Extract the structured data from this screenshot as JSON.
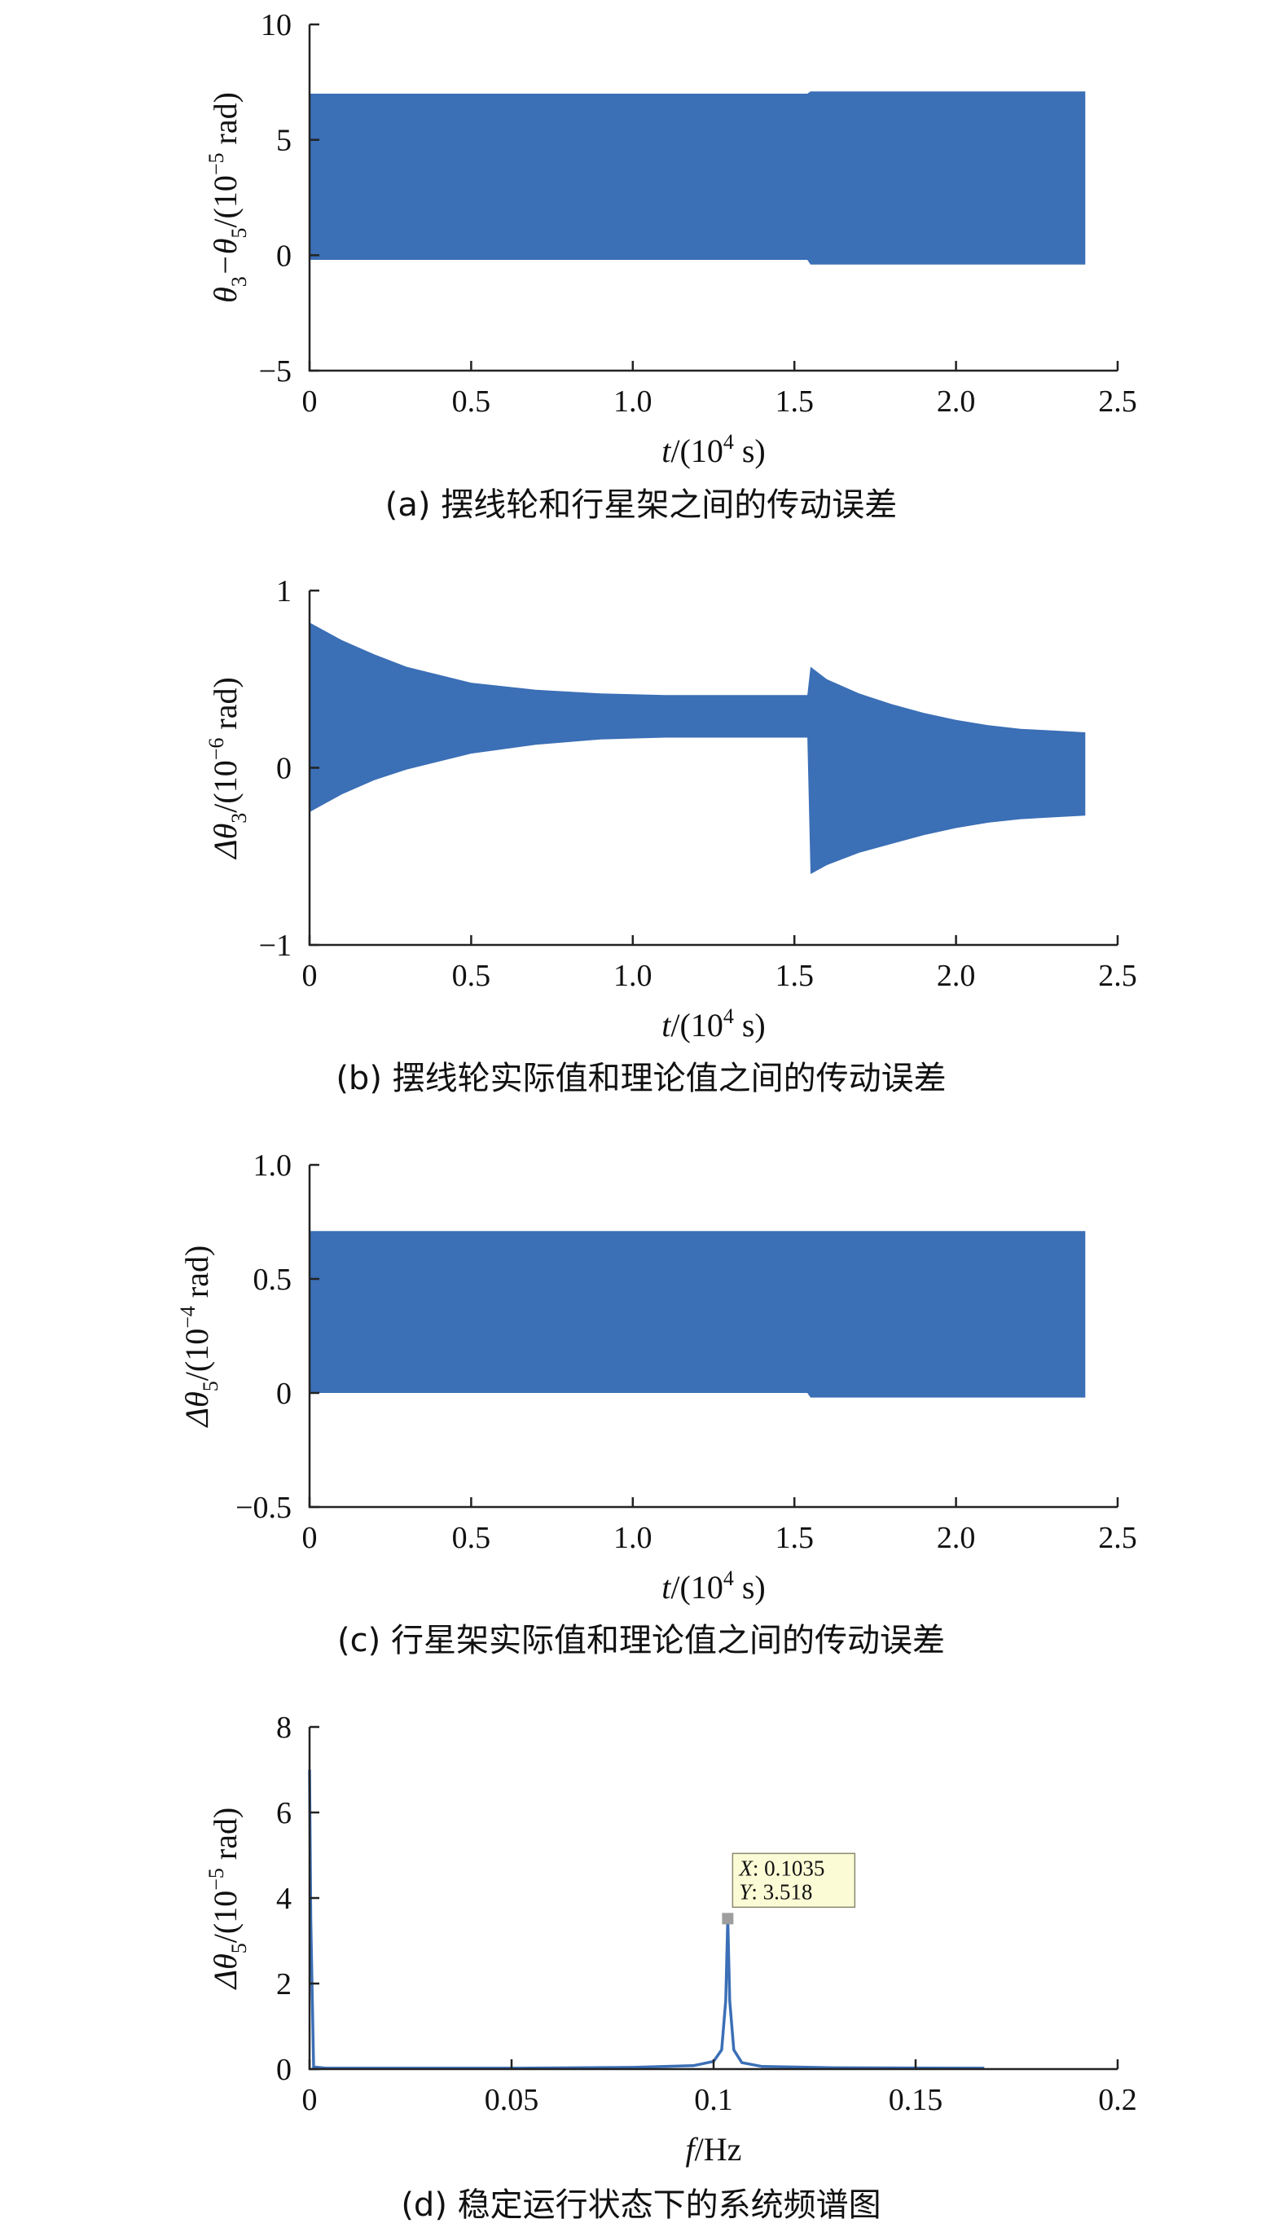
{
  "chart_data": [
    {
      "type": "area",
      "panel": "a",
      "caption": "(a) 摆线轮和行星架之间的传动误差",
      "ylabel": "θ3−θ5/(10−5 rad)",
      "ylabel_parts": {
        "main": "θ",
        "sub1": "3",
        "dash": "−θ",
        "sub2": "5",
        "pre": "/(10",
        "sup": "−5",
        "post": " rad)"
      },
      "xlabel": "t/(10⁴ s)",
      "xlabel_parts": {
        "var": "t",
        "pre": "/(10",
        "sup": "4",
        "post": " s)"
      },
      "xlim": [
        0,
        2.5
      ],
      "ylim": [
        -5,
        10
      ],
      "xticks": [
        "0",
        "0.5",
        "1.0",
        "1.5",
        "2.0",
        "2.5"
      ],
      "xtick_values": [
        0,
        0.5,
        1.0,
        1.5,
        2.0,
        2.5
      ],
      "yticks": [
        "−5",
        "0",
        "5",
        "10"
      ],
      "ytick_values": [
        -5,
        0,
        5,
        10
      ],
      "series": [
        {
          "color": "#3b6fb6",
          "envelope_t": [
            0,
            1.54,
            1.55,
            2.4
          ],
          "upper": [
            7.0,
            7.0,
            7.1,
            7.1
          ],
          "lower": [
            -0.2,
            -0.2,
            -0.4,
            -0.4
          ]
        }
      ]
    },
    {
      "type": "area",
      "panel": "b",
      "caption": "(b) 摆线轮实际值和理论值之间的传动误差",
      "ylabel": "Δθ3/(10−6 rad)",
      "ylabel_parts": {
        "main": "Δθ",
        "sub": "3",
        "pre": "/(10",
        "sup": "−6",
        "post": " rad)"
      },
      "xlabel": "t/(10⁴ s)",
      "xlabel_parts": {
        "var": "t",
        "pre": "/(10",
        "sup": "4",
        "post": " s)"
      },
      "xlim": [
        0,
        2.5
      ],
      "ylim": [
        -1,
        1
      ],
      "xticks": [
        "0",
        "0.5",
        "1.0",
        "1.5",
        "2.0",
        "2.5"
      ],
      "xtick_values": [
        0,
        0.5,
        1.0,
        1.5,
        2.0,
        2.5
      ],
      "yticks": [
        "−1",
        "0",
        "1"
      ],
      "ytick_values": [
        -1,
        0,
        1
      ],
      "series": [
        {
          "color": "#3b6fb6",
          "envelope_t": [
            0,
            0.1,
            0.2,
            0.3,
            0.5,
            0.7,
            0.9,
            1.1,
            1.3,
            1.54,
            1.55,
            1.6,
            1.7,
            1.8,
            1.9,
            2.0,
            2.1,
            2.2,
            2.3,
            2.4
          ],
          "upper": [
            0.82,
            0.72,
            0.64,
            0.57,
            0.48,
            0.44,
            0.42,
            0.41,
            0.41,
            0.41,
            0.57,
            0.5,
            0.42,
            0.36,
            0.31,
            0.27,
            0.24,
            0.22,
            0.21,
            0.2
          ],
          "lower": [
            -0.25,
            -0.15,
            -0.07,
            -0.01,
            0.08,
            0.13,
            0.16,
            0.17,
            0.17,
            0.17,
            -0.6,
            -0.55,
            -0.48,
            -0.43,
            -0.38,
            -0.34,
            -0.31,
            -0.29,
            -0.28,
            -0.27
          ]
        }
      ]
    },
    {
      "type": "area",
      "panel": "c",
      "caption": "(c) 行星架实际值和理论值之间的传动误差",
      "ylabel": "Δθ5/(10−4 rad)",
      "ylabel_parts": {
        "main": "Δθ",
        "sub": "5",
        "pre": "/(10",
        "sup": "−4",
        "post": " rad)"
      },
      "xlabel": "t/(10⁴ s)",
      "xlabel_parts": {
        "var": "t",
        "pre": "/(10",
        "sup": "4",
        "post": " s)"
      },
      "xlim": [
        0,
        2.5
      ],
      "ylim": [
        -0.5,
        1.0
      ],
      "xticks": [
        "0",
        "0.5",
        "1.0",
        "1.5",
        "2.0",
        "2.5"
      ],
      "xtick_values": [
        0,
        0.5,
        1.0,
        1.5,
        2.0,
        2.5
      ],
      "yticks": [
        "−0.5",
        "0",
        "0.5",
        "1.0"
      ],
      "ytick_values": [
        -0.5,
        0,
        0.5,
        1.0
      ],
      "series": [
        {
          "color": "#3b6fb6",
          "envelope_t": [
            0,
            1.54,
            1.55,
            2.4
          ],
          "upper": [
            0.71,
            0.71,
            0.71,
            0.71
          ],
          "lower": [
            0.0,
            0.0,
            -0.02,
            -0.02
          ]
        }
      ]
    },
    {
      "type": "line",
      "panel": "d",
      "caption": "(d) 稳定运行状态下的系统频谱图",
      "ylabel": "Δθ5/(10−5 rad)",
      "ylabel_parts": {
        "main": "Δθ",
        "sub": "5",
        "pre": "/(10",
        "sup": "−5",
        "post": " rad)"
      },
      "xlabel": "f/Hz",
      "xlabel_parts": {
        "var": "f",
        "post": "/Hz"
      },
      "xlim": [
        0,
        0.2
      ],
      "ylim": [
        0,
        8
      ],
      "xticks": [
        "0",
        "0.05",
        "0.1",
        "0.15",
        "0.2"
      ],
      "xtick_values": [
        0,
        0.05,
        0.1,
        0.15,
        0.2
      ],
      "yticks": [
        "0",
        "2",
        "4",
        "6",
        "8"
      ],
      "ytick_values": [
        0,
        2,
        4,
        6,
        8
      ],
      "series": [
        {
          "color": "#3b6fb6",
          "x": [
            0,
            0.0003,
            0.001,
            0.004,
            0.02,
            0.05,
            0.08,
            0.095,
            0.1,
            0.102,
            0.103,
            0.1035,
            0.104,
            0.105,
            0.107,
            0.112,
            0.13,
            0.167
          ],
          "y": [
            7.0,
            3.5,
            0.05,
            0.02,
            0.02,
            0.02,
            0.04,
            0.08,
            0.18,
            0.45,
            1.6,
            3.518,
            1.6,
            0.45,
            0.15,
            0.06,
            0.03,
            0.02
          ]
        }
      ],
      "datatip": {
        "x": 0.1035,
        "y": 3.518,
        "x_label": "X",
        "y_label": "Y",
        "x_text": "0.1035",
        "y_text": "3.518"
      }
    }
  ]
}
